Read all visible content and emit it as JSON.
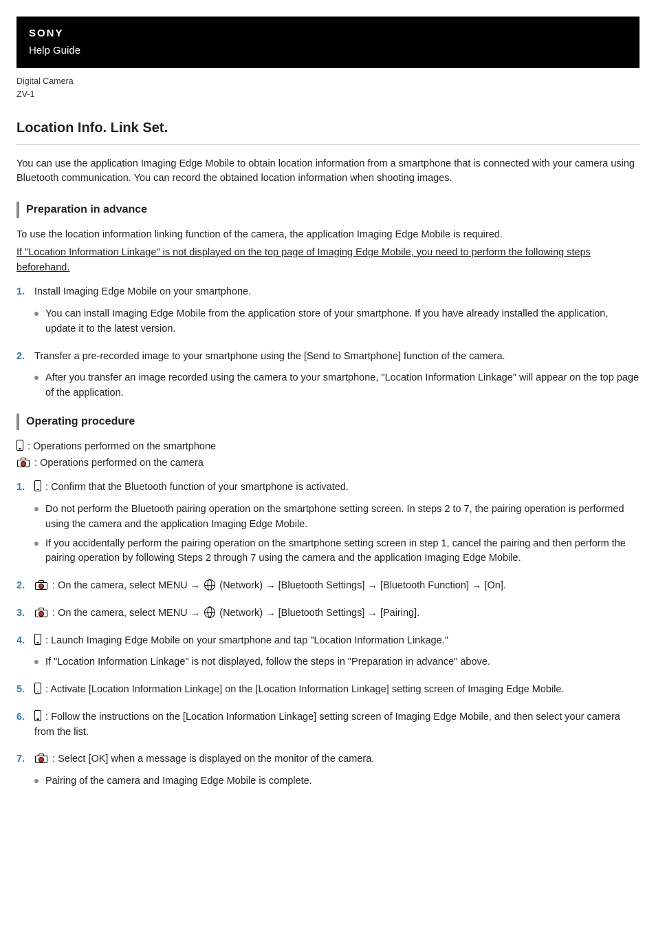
{
  "header": {
    "brand": "SONY",
    "subtitle": "Help Guide"
  },
  "product": {
    "line1": "Digital Camera",
    "line2": "ZV-1"
  },
  "page_title": "Location Info. Link Set.",
  "intro": "You can use the application Imaging Edge Mobile to obtain location information from a smartphone that is connected with your camera using Bluetooth communication. You can record the obtained location information when shooting images.",
  "prep": {
    "heading": "Preparation in advance",
    "text1": "To use the location information linking function of the camera, the application Imaging Edge Mobile is required.",
    "text2": "If \"Location Information Linkage\" is not displayed on the top page of Imaging Edge Mobile, you need to perform the following steps beforehand.",
    "steps": [
      {
        "text": "Install Imaging Edge Mobile on your smartphone.",
        "bullets": [
          "You can install Imaging Edge Mobile from the application store of your smartphone. If you have already installed the application, update it to the latest version."
        ]
      },
      {
        "text": "Transfer a pre-recorded image to your smartphone using the [Send to Smartphone] function of the camera.",
        "bullets": [
          "After you transfer an image recorded using the camera to your smartphone, \"Location Information Linkage\" will appear on the top page of the application."
        ]
      }
    ]
  },
  "operating": {
    "heading": "Operating procedure",
    "legend_phone": ": Operations performed on the smartphone",
    "legend_camera": " : Operations performed on the camera",
    "steps": [
      {
        "icon": "phone",
        "text": ": Confirm that the Bluetooth function of your smartphone is activated.",
        "bullets": [
          "Do not perform the Bluetooth pairing operation on the smartphone setting screen. In steps 2 to 7, the pairing operation is performed using the camera and the application Imaging Edge Mobile.",
          "If you accidentally perform the pairing operation on the smartphone setting screen in step 1, cancel the pairing and then perform the pairing operation by following Steps 2 through 7 using the camera and the application Imaging Edge Mobile."
        ]
      },
      {
        "icon": "camera",
        "pre": " : On the camera, select MENU → ",
        "post": " (Network) → [Bluetooth Settings] → [Bluetooth Function] → [On].",
        "globe": true
      },
      {
        "icon": "camera",
        "pre": " : On the camera, select MENU → ",
        "post": " (Network) → [Bluetooth Settings] → [Pairing].",
        "globe": true
      },
      {
        "icon": "phone",
        "text": ": Launch Imaging Edge Mobile on your smartphone and tap \"Location Information Linkage.\"",
        "bullets": [
          "If \"Location Information Linkage\" is not displayed, follow the steps in \"Preparation in advance\" above."
        ]
      },
      {
        "icon": "phone",
        "text": ": Activate [Location Information Linkage] on the [Location Information Linkage] setting screen of Imaging Edge Mobile."
      },
      {
        "icon": "phone",
        "text": ": Follow the instructions on the [Location Information Linkage] setting screen of Imaging Edge Mobile, and then select your camera from the list."
      },
      {
        "icon": "camera",
        "text": " : Select [OK] when a message is displayed on the monitor of the camera.",
        "bullets": [
          "Pairing of the camera and Imaging Edge Mobile is complete."
        ]
      }
    ]
  },
  "colors": {
    "header_bg": "#000000",
    "header_fg": "#ffffff",
    "step_number": "#3a7aa8",
    "bullet": "#888888",
    "rule": "#bbbbbb",
    "section_border": "#888888",
    "camera_lens": "#c0392b"
  }
}
